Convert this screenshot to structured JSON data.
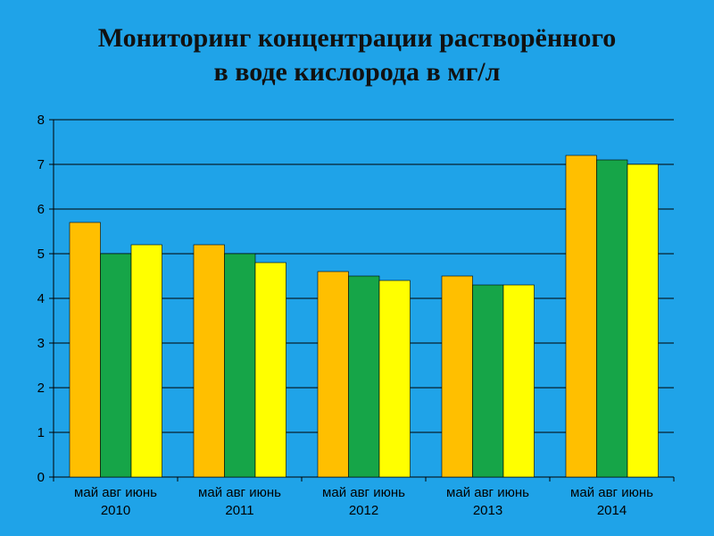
{
  "chart_data": {
    "type": "bar",
    "title_lines": [
      "Мониторинг концентрации растворённого",
      "в воде кислорода в мг/л"
    ],
    "groups": [
      {
        "label_line1": "май авг июнь",
        "label_line2": "2010",
        "values": [
          5.7,
          5.0,
          5.2
        ]
      },
      {
        "label_line1": "май авг июнь",
        "label_line2": "2011",
        "values": [
          5.2,
          5.0,
          4.8
        ]
      },
      {
        "label_line1": "май авг июнь",
        "label_line2": "2012",
        "values": [
          4.6,
          4.5,
          4.4
        ]
      },
      {
        "label_line1": "май авг июнь",
        "label_line2": "2013",
        "values": [
          4.5,
          4.3,
          4.3
        ]
      },
      {
        "label_line1": "май авг июнь",
        "label_line2": "2014",
        "values": [
          7.2,
          7.1,
          7.0
        ]
      }
    ],
    "series_colors": [
      "#ffbf00",
      "#16a548",
      "#ffff00"
    ],
    "ylim": [
      0,
      8
    ],
    "yticks": [
      "0",
      "1",
      "2",
      "3",
      "4",
      "5",
      "6",
      "7",
      "8"
    ],
    "grid": true,
    "legend": "none"
  }
}
